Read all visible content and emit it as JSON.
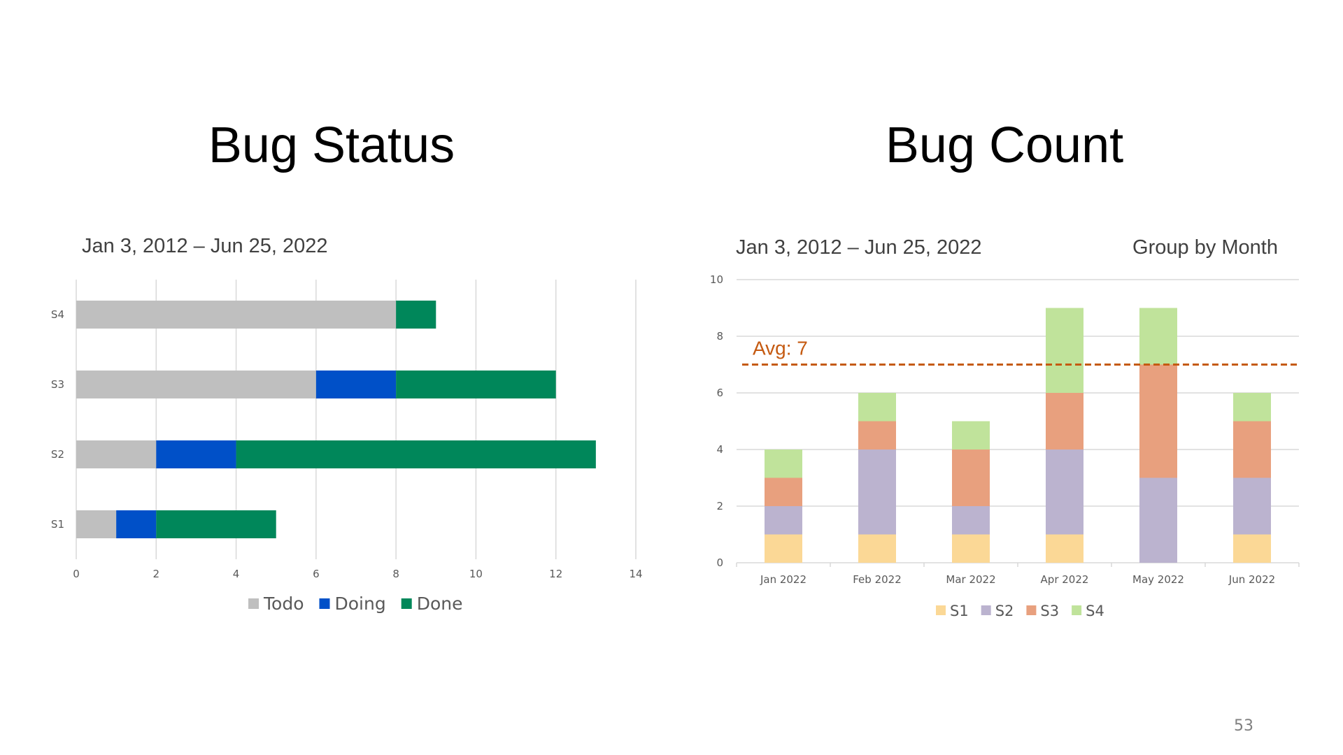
{
  "page": {
    "number": "53"
  },
  "left": {
    "title": "Bug Status",
    "subtitle": "Jan 3, 2012 – Jun 25, 2022"
  },
  "right": {
    "title": "Bug Count",
    "subtitle": "Jan 3, 2012 – Jun 25, 2022",
    "group_by": "Group by Month"
  },
  "chart_data": [
    {
      "type": "bar",
      "orientation": "horizontal",
      "stacked": true,
      "categories": [
        "S1",
        "S2",
        "S3",
        "S4"
      ],
      "series": [
        {
          "name": "Todo",
          "color": "#BFBFBF",
          "values": [
            1,
            2,
            6,
            8
          ]
        },
        {
          "name": "Doing",
          "color": "#0050C8",
          "values": [
            1,
            2,
            2,
            0
          ]
        },
        {
          "name": "Done",
          "color": "#00875A",
          "values": [
            3,
            9,
            4,
            1
          ]
        }
      ],
      "xlim": [
        0,
        14
      ],
      "xticks": [
        0,
        2,
        4,
        6,
        8,
        10,
        12,
        14
      ],
      "grid": true,
      "legend": "bottom"
    },
    {
      "type": "bar",
      "stacked": true,
      "categories": [
        "Jan 2022",
        "Feb 2022",
        "Mar 2022",
        "Apr 2022",
        "May 2022",
        "Jun 2022"
      ],
      "series": [
        {
          "name": "S1",
          "color": "#FBD896",
          "values": [
            1,
            1,
            1,
            1,
            0,
            1
          ]
        },
        {
          "name": "S2",
          "color": "#BBB3CF",
          "values": [
            1,
            3,
            1,
            3,
            3,
            2
          ]
        },
        {
          "name": "S3",
          "color": "#E8A07E",
          "values": [
            1,
            1,
            2,
            2,
            4,
            2
          ]
        },
        {
          "name": "S4",
          "color": "#C0E39B",
          "values": [
            1,
            1,
            1,
            3,
            2,
            1
          ]
        }
      ],
      "ylim": [
        0,
        10
      ],
      "yticks": [
        0,
        2,
        4,
        6,
        8,
        10
      ],
      "reference_line": {
        "value": 7,
        "label": "Avg: 7",
        "color": "#C55A11",
        "style": "dashed"
      },
      "grid": true,
      "legend": "bottom"
    }
  ]
}
